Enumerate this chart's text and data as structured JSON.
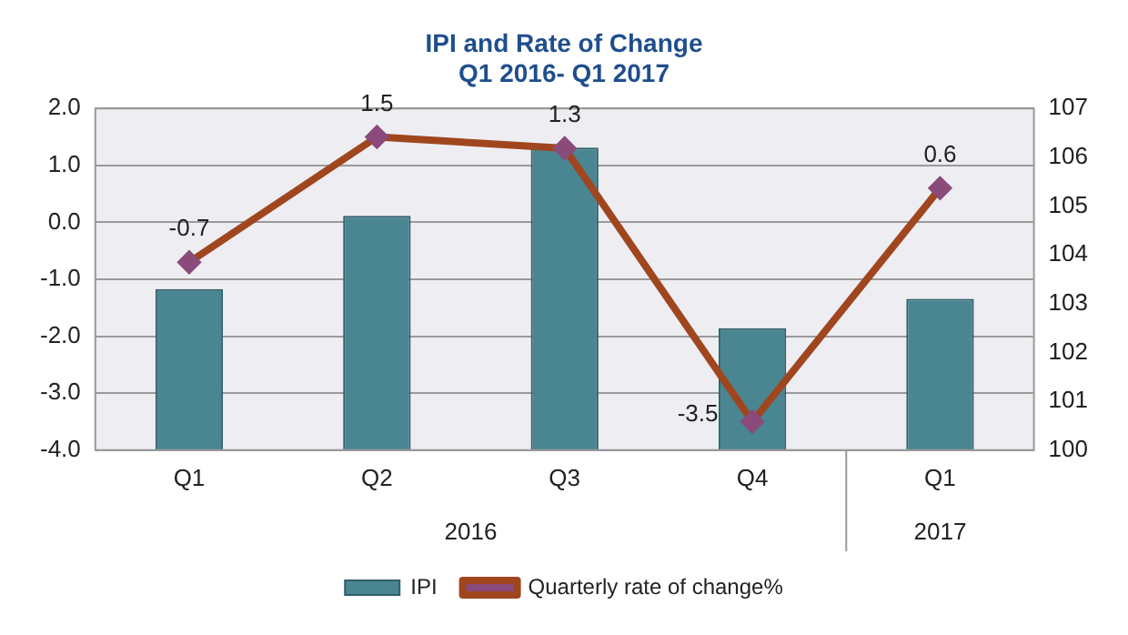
{
  "chart_data": {
    "type": "bar",
    "title": "IPI and Rate of Change",
    "subtitle": "Q1 2016- Q1 2017",
    "categories": [
      "Q1",
      "Q2",
      "Q3",
      "Q4",
      "Q1"
    ],
    "series": [
      {
        "name": "IPI",
        "axis": "y2",
        "color": "#4a8592",
        "values": [
          103.3,
          104.8,
          106.2,
          102.5,
          103.1
        ]
      },
      {
        "name": "Quarterly rate of change%",
        "type": "line",
        "axis": "y",
        "color": "#a0461f",
        "marker": "diamond",
        "values": [
          -0.7,
          1.5,
          1.3,
          -3.5,
          0.6
        ],
        "value_labels": [
          "-0.7",
          "1.5",
          "1.3",
          "-3.5",
          "0.6"
        ]
      }
    ],
    "ylim": [
      -4,
      2
    ],
    "yticks": [
      {
        "value": -4,
        "label": "-4.0"
      },
      {
        "value": -3,
        "label": "-3.0"
      },
      {
        "value": -2,
        "label": "-2.0"
      },
      {
        "value": -1,
        "label": "-1.0"
      },
      {
        "value": 0,
        "label": "0.0"
      },
      {
        "value": 1,
        "label": "1.0"
      },
      {
        "value": 2,
        "label": "2.0"
      }
    ],
    "y2lim": [
      100,
      107
    ],
    "y2ticks": [
      100,
      101,
      102,
      103,
      104,
      105,
      106,
      107
    ],
    "annotations": [
      "2016",
      "2017"
    ],
    "grid": "y",
    "legend": "bottom"
  }
}
